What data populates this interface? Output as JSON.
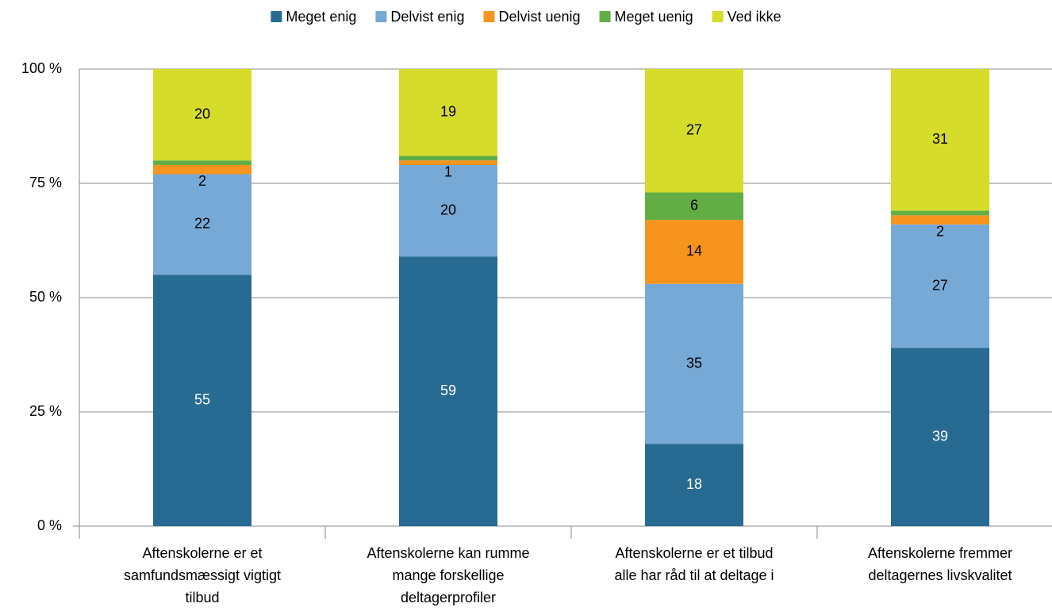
{
  "chart_data": {
    "type": "stacked_bar",
    "categories": [
      [
        "Aftenskolerne er et",
        "samfundsmæssigt vigtigt",
        "tilbud"
      ],
      [
        "Aftenskolerne kan rumme",
        "mange forskellige",
        "deltagerprofiler"
      ],
      [
        "Aftenskolerne er et tilbud",
        "alle har råd til at deltage i"
      ],
      [
        "Aftenskolerne fremmer",
        "deltagernes livskvalitet"
      ]
    ],
    "series": [
      {
        "name": "Meget enig",
        "color": "#276a92",
        "values": [
          55,
          59,
          18,
          39
        ]
      },
      {
        "name": "Delvist enig",
        "color": "#77a9d6",
        "values": [
          22,
          20,
          35,
          27
        ]
      },
      {
        "name": "Delvist uenig",
        "color": "#f7941d",
        "values": [
          2,
          1,
          14,
          2
        ]
      },
      {
        "name": "Meget uenig",
        "color": "#62ad46",
        "values": [
          1,
          1,
          6,
          1
        ]
      },
      {
        "name": "Ved ikke",
        "color": "#d5dc2a",
        "values": [
          20,
          19,
          27,
          31
        ]
      }
    ],
    "ylim": [
      0,
      100
    ],
    "yticks": [
      {
        "value": 0,
        "label": "0 %"
      },
      {
        "value": 25,
        "label": "25 %"
      },
      {
        "value": 50,
        "label": "50 %"
      },
      {
        "value": 75,
        "label": "75 %"
      },
      {
        "value": 100,
        "label": "100 %"
      }
    ],
    "grid": true,
    "legend": "top"
  }
}
